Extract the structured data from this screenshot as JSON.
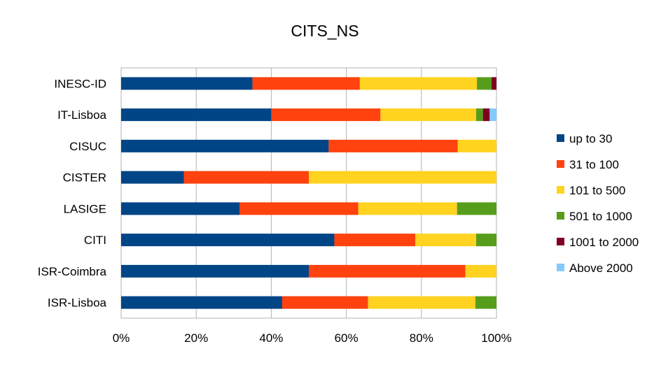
{
  "chart_data": {
    "type": "bar",
    "orientation": "horizontal",
    "stacked": "percent",
    "title": "CITS_NS",
    "xlabel": "",
    "ylabel": "",
    "xlim": [
      0,
      100
    ],
    "x_ticks": [
      "0%",
      "20%",
      "40%",
      "60%",
      "80%",
      "100%"
    ],
    "grid": true,
    "legend_position": "right",
    "categories": [
      "INESC-ID",
      "IT-Lisboa",
      "CISUC",
      "CISTER",
      "LASIGE",
      "CITI",
      "ISR-Coimbra",
      "ISR-Lisboa"
    ],
    "series": [
      {
        "name": "up to 30",
        "color": "#004586",
        "values": [
          35,
          40,
          55.3,
          16.7,
          31.6,
          56.8,
          50,
          42.9
        ]
      },
      {
        "name": "31 to 100",
        "color": "#ff420e",
        "values": [
          28.6,
          29.1,
          34.4,
          33.3,
          31.6,
          21.6,
          41.7,
          22.9
        ]
      },
      {
        "name": "101 to 500",
        "color": "#ffd320",
        "values": [
          31.2,
          25.5,
          10.3,
          50,
          26.3,
          16.2,
          8.3,
          28.6
        ]
      },
      {
        "name": "501 to 1000",
        "color": "#579d1c",
        "values": [
          3.9,
          1.8,
          0,
          0,
          10.5,
          5.4,
          0,
          5.6
        ]
      },
      {
        "name": "1001 to 2000",
        "color": "#7e0021",
        "values": [
          1.3,
          1.8,
          0,
          0,
          0,
          0,
          0,
          0
        ]
      },
      {
        "name": "Above 2000",
        "color": "#83caff",
        "values": [
          0,
          1.8,
          0,
          0,
          0,
          0,
          0,
          0
        ]
      }
    ]
  }
}
